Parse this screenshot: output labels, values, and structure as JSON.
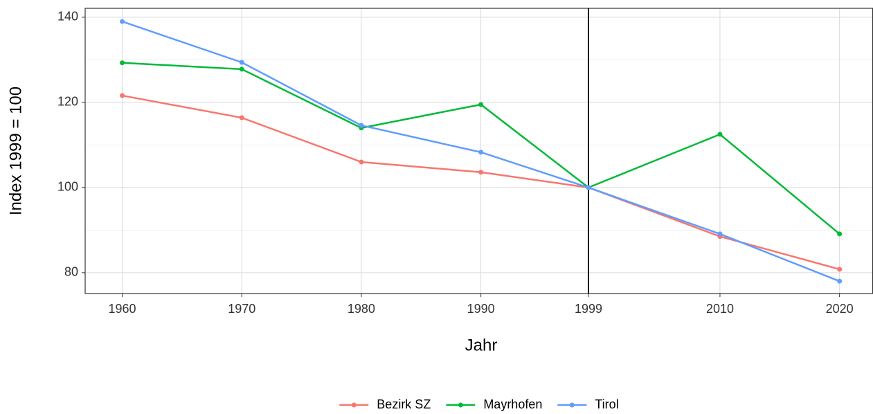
{
  "chart_data": {
    "type": "line",
    "x_label": "Jahr",
    "y_label": "Index 1999 = 100",
    "x": [
      1960,
      1970,
      1980,
      1990,
      1999,
      2010,
      2020
    ],
    "series": [
      {
        "name": "Bezirk SZ",
        "color": "#F8766D",
        "values": [
          121.6,
          116.4,
          106.0,
          103.6,
          100,
          88.5,
          80.8
        ]
      },
      {
        "name": "Mayrhofen",
        "color": "#00BA38",
        "values": [
          129.3,
          127.8,
          114.0,
          119.5,
          100,
          112.5,
          89.1
        ]
      },
      {
        "name": "Tirol",
        "color": "#619CFF",
        "values": [
          139.0,
          129.4,
          114.6,
          108.3,
          100,
          89.1,
          78.0
        ]
      }
    ],
    "xlim": [
      1956.9,
      2022.8
    ],
    "xticks": [
      1960,
      1970,
      1980,
      1990,
      1999,
      2010,
      2020
    ],
    "ylim": [
      75.1,
      142.1
    ],
    "yticks": [
      80,
      100,
      120,
      140
    ],
    "yminor": [
      90,
      110,
      130
    ],
    "vline": 1999,
    "grid": true,
    "legend": "bottom"
  }
}
